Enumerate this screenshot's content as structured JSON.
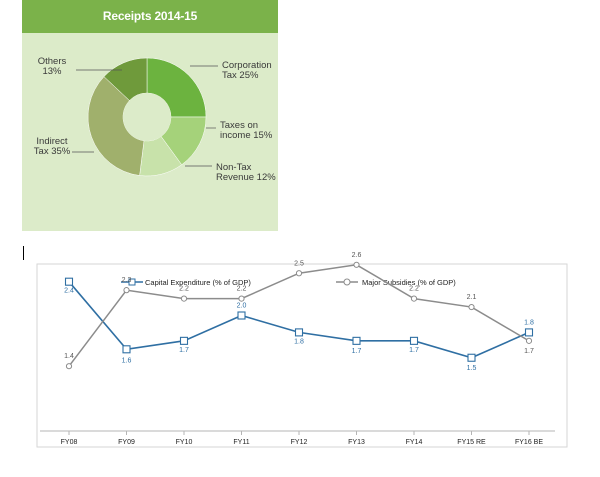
{
  "chart_data": [
    {
      "type": "pie",
      "title": "Receipts 2014-15",
      "slices": [
        {
          "label_line1": "Corporation",
          "label_line2": "Tax 25%",
          "value": 25
        },
        {
          "label_line1": "Taxes on",
          "label_line2": "income 15%",
          "value": 15
        },
        {
          "label_line1": "Non-Tax",
          "label_line2": "Revenue 12%",
          "value": 12
        },
        {
          "label_line1": "Indirect",
          "label_line2": "Tax 35%",
          "value": 35
        },
        {
          "label_line1": "Others",
          "label_line2": "13%",
          "value": 13
        }
      ],
      "colors": [
        "#6cb33f",
        "#a5d27a",
        "#c8e2aa",
        "#a0b06c",
        "#6f9a3b"
      ]
    },
    {
      "type": "line",
      "categories": [
        "FY08",
        "FY09",
        "FY10",
        "FY11",
        "FY12",
        "FY13",
        "FY14",
        "FY15 RE",
        "FY16 BE"
      ],
      "series": [
        {
          "name": "Capital Expenditure (% of GDP)",
          "color": "#2f6fa3",
          "values": [
            2.4,
            1.6,
            1.7,
            2.0,
            1.8,
            1.7,
            1.7,
            1.5,
            1.8
          ],
          "labels": [
            "2.4",
            "1.6",
            "1.7",
            "2.0",
            "1.8",
            "1.7",
            "1.7",
            "1.5",
            "1.8"
          ]
        },
        {
          "name": "Major Subsidies (% of GDP)",
          "color": "#8c8c8c",
          "values": [
            1.4,
            2.3,
            2.2,
            2.2,
            2.5,
            2.6,
            2.2,
            2.1,
            1.7
          ],
          "labels": [
            "1.4",
            "2.3",
            "2.2",
            "2.2",
            "2.5",
            "2.6",
            "2.2",
            "2.1",
            "1.7"
          ]
        }
      ],
      "legend_position": "top",
      "ylim": [
        1.0,
        2.8
      ],
      "grid": false
    }
  ]
}
